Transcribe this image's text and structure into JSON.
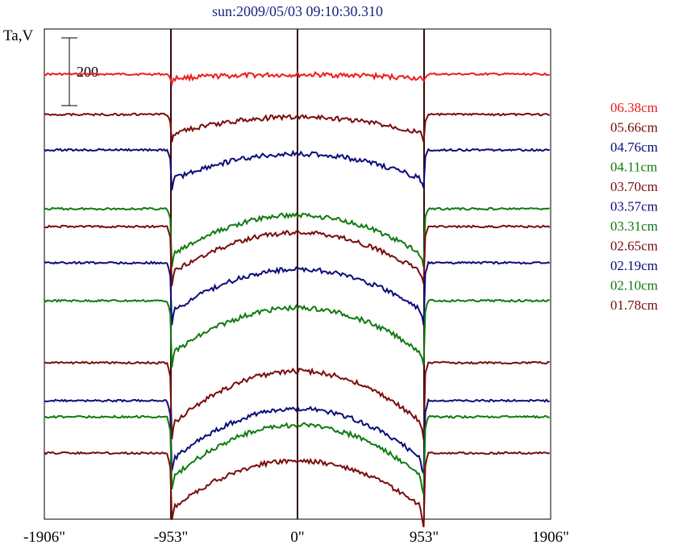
{
  "chart_data": {
    "type": "line",
    "title": "sun:2009/05/03 09:10:30.310",
    "ylabel": "Ta,V",
    "xlabel": "",
    "xlim": [
      -1906,
      1906
    ],
    "xticks": [
      {
        "value": -1906,
        "label": "-1906\""
      },
      {
        "value": -953,
        "label": "-953\""
      },
      {
        "value": 0,
        "label": "0\""
      },
      {
        "value": 953,
        "label": "953\""
      },
      {
        "value": 1906,
        "label": "1906\""
      }
    ],
    "vertical_lines": [
      -953,
      0,
      953
    ],
    "scale_bar": {
      "label": "200",
      "value": 200
    },
    "grid": false,
    "legend_position": "right",
    "colors": {
      "red": "#ee1c1c",
      "darkred": "#7a0c0c",
      "navy": "#0c0c7a",
      "green": "#0f7a0f",
      "frame": "#000000",
      "divider": "#3a0808"
    },
    "series": [
      {
        "name": "06.38cm",
        "color": "#ee1c1c",
        "baseline": 0,
        "depth": 10,
        "dip": 12
      },
      {
        "name": "05.66cm",
        "color": "#7a0c0c",
        "baseline": 0,
        "depth": 45,
        "dip": 22
      },
      {
        "name": "04.76cm",
        "color": "#0c0c7a",
        "baseline": 0,
        "depth": 70,
        "dip": 28
      },
      {
        "name": "04.11cm",
        "color": "#0f7a0f",
        "baseline": 0,
        "depth": 110,
        "dip": 30
      },
      {
        "name": "03.70cm",
        "color": "#7a0c0c",
        "baseline": 0,
        "depth": 110,
        "dip": 34
      },
      {
        "name": "03.57cm",
        "color": "#0c0c7a",
        "baseline": 0,
        "depth": 115,
        "dip": 36
      },
      {
        "name": "03.31cm",
        "color": "#0f7a0f",
        "baseline": 0,
        "depth": 125,
        "dip": 36
      },
      {
        "name": "02.65cm",
        "color": "#7a0c0c",
        "baseline": 0,
        "depth": 145,
        "dip": 40
      },
      {
        "name": "02.19cm",
        "color": "#0c0c7a",
        "baseline": 0,
        "depth": 140,
        "dip": 42
      },
      {
        "name": "02.10cm",
        "color": "#0f7a0f",
        "baseline": 0,
        "depth": 145,
        "dip": 42
      },
      {
        "name": "01.78cm",
        "color": "#7a0c0c",
        "baseline": 0,
        "depth": 130,
        "dip": 44
      }
    ]
  }
}
